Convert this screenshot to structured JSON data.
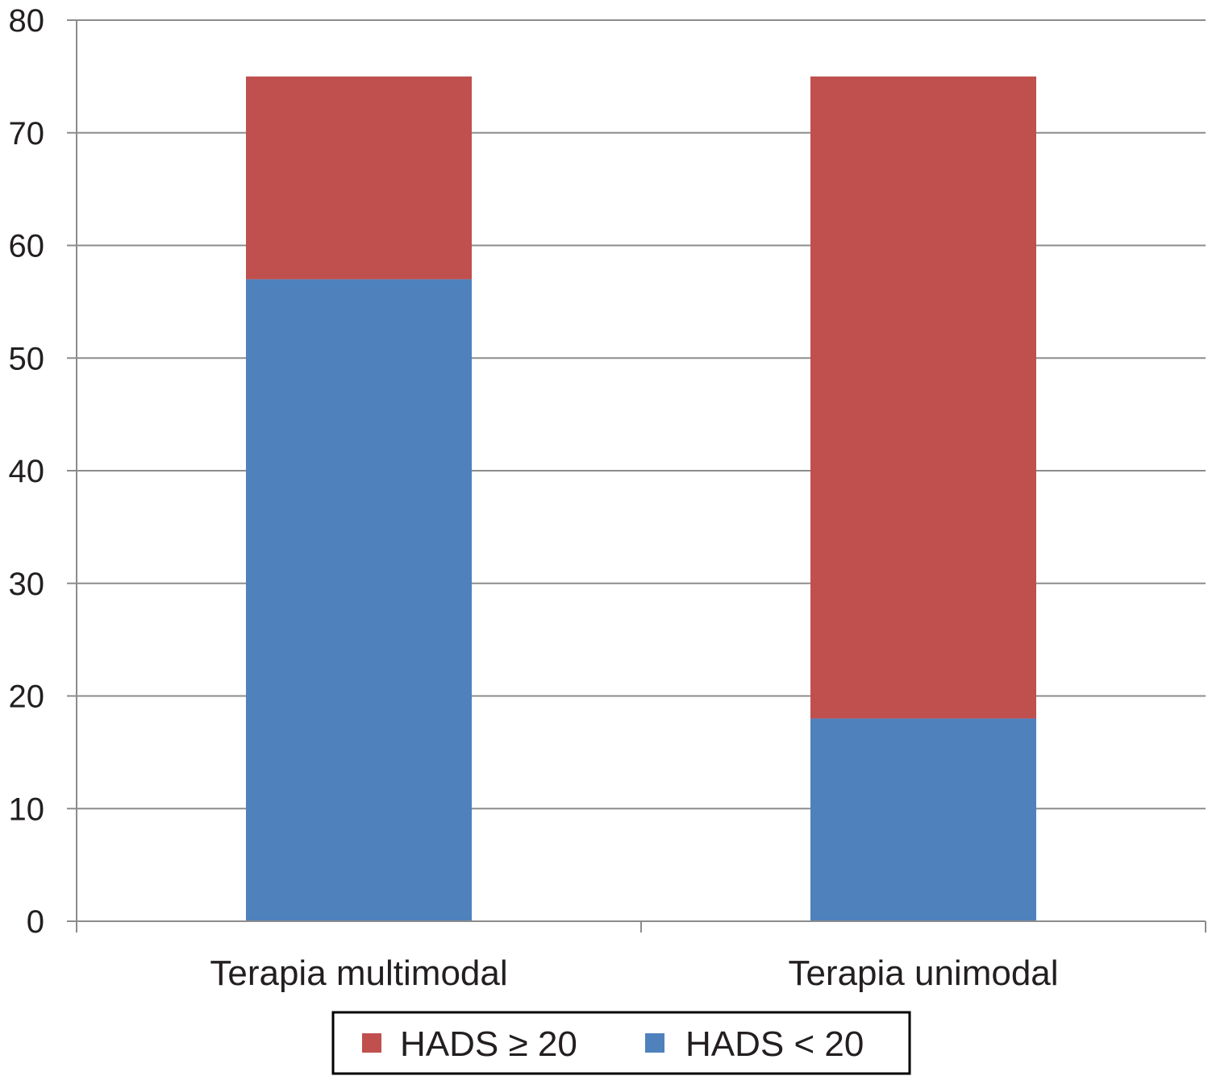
{
  "chart_data": {
    "type": "bar",
    "stacked": true,
    "categories": [
      "Terapia multimodal",
      "Terapia unimodal"
    ],
    "series": [
      {
        "name": "HADS < 20",
        "color": "#4f81bd",
        "values": [
          57,
          18
        ]
      },
      {
        "name": "HADS ≥ 20",
        "color": "#c0504d",
        "values": [
          18,
          57
        ]
      }
    ],
    "ylim": [
      0,
      80
    ],
    "yticks": [
      0,
      10,
      20,
      30,
      40,
      50,
      60,
      70,
      80
    ],
    "grid": true,
    "legend_position": "bottom",
    "legend_order": [
      "HADS ≥ 20",
      "HADS < 20"
    ],
    "title": "",
    "xlabel": "",
    "ylabel": ""
  }
}
